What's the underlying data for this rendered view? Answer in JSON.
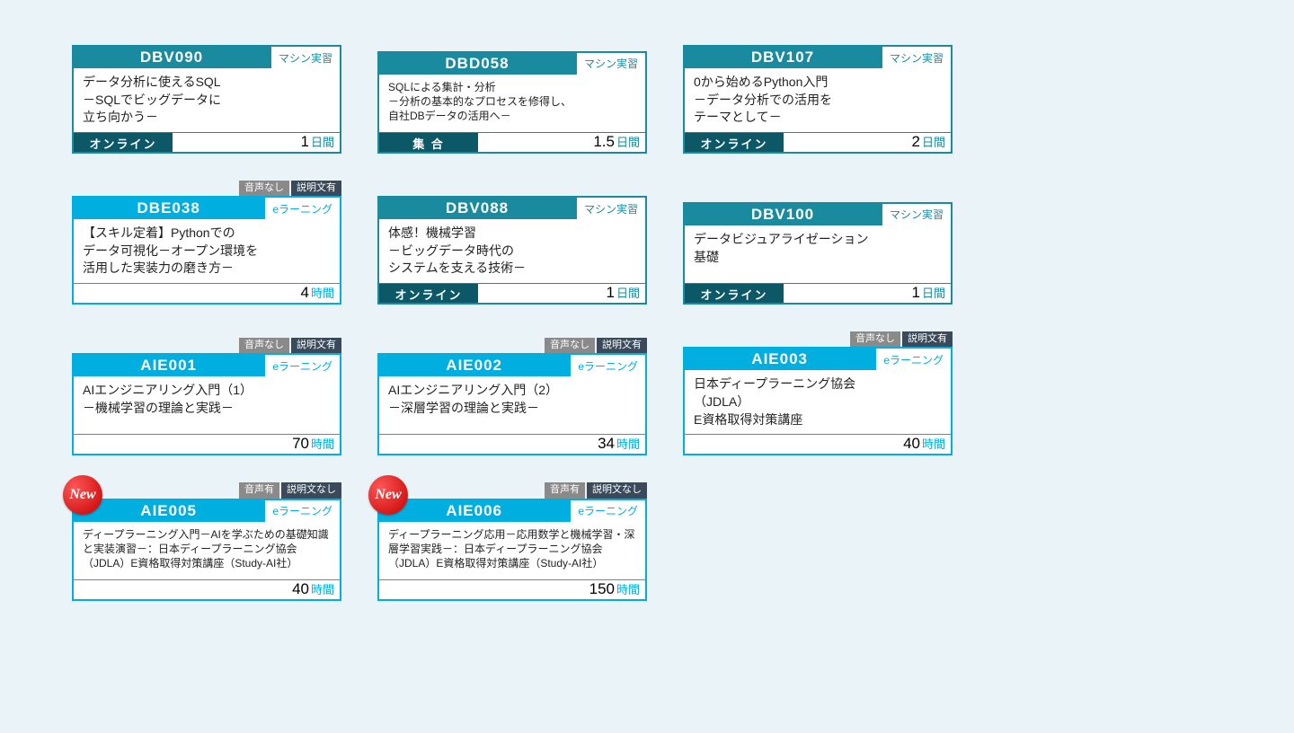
{
  "colors": {
    "teal": "#1a8a9e",
    "dark_teal": "#0d5866",
    "cyan": "#00aee0",
    "text": "#222222",
    "new_label": "New"
  },
  "type_labels": {
    "machine": "マシン実習",
    "elearning": "eラーニング"
  },
  "duration_units": {
    "days": "日間",
    "hours": "時間"
  },
  "tag_labels": {
    "no_audio": "音声なし",
    "has_audio": "音声有",
    "has_text": "説明文有",
    "no_text": "説明文なし"
  },
  "delivery_labels": {
    "online": "オンライン",
    "inperson": "集 合"
  },
  "cards": [
    {
      "code": "DBV090",
      "type": "machine",
      "color": "teal",
      "title": "データ分析に使えるSQL\n－SQLでビッグデータに\n立ち向かう－",
      "delivery": "online",
      "duration": "1",
      "unit": "days"
    },
    {
      "code": "DBD058",
      "type": "machine",
      "color": "teal",
      "title": "SQLによる集計・分析\n－分析の基本的なプロセスを修得し、\n自社DBデータの活用へ－",
      "delivery": "inperson",
      "duration": "1.5",
      "unit": "days",
      "small": true
    },
    {
      "code": "DBV107",
      "type": "machine",
      "color": "teal",
      "title": "0から始めるPython入門\n－データ分析での活用を\nテーマとして－",
      "delivery": "online",
      "duration": "2",
      "unit": "days"
    },
    {
      "code": "DBE038",
      "type": "elearning",
      "color": "cyan",
      "tags": [
        "no_audio",
        "has_text"
      ],
      "title": "【スキル定着】Pythonでの\nデータ可視化－オープン環境を\n活用した実装力の磨き方－",
      "duration": "4",
      "unit": "hours"
    },
    {
      "code": "DBV088",
      "type": "machine",
      "color": "teal",
      "title": "体感！機械学習\n－ビッグデータ時代の\nシステムを支える技術－",
      "delivery": "online",
      "duration": "1",
      "unit": "days"
    },
    {
      "code": "DBV100",
      "type": "machine",
      "color": "teal",
      "title": "データビジュアライゼーション\n基礎",
      "delivery": "online",
      "duration": "1",
      "unit": "days"
    },
    {
      "code": "AIE001",
      "type": "elearning",
      "color": "cyan",
      "tags": [
        "no_audio",
        "has_text"
      ],
      "title": "AIエンジニアリング入門（1）\n－機械学習の理論と実践－",
      "duration": "70",
      "unit": "hours"
    },
    {
      "code": "AIE002",
      "type": "elearning",
      "color": "cyan",
      "tags": [
        "no_audio",
        "has_text"
      ],
      "title": "AIエンジニアリング入門（2）\n－深層学習の理論と実践－",
      "duration": "34",
      "unit": "hours"
    },
    {
      "code": "AIE003",
      "type": "elearning",
      "color": "cyan",
      "tags": [
        "no_audio",
        "has_text"
      ],
      "title": "日本ディープラーニング協会\n（JDLA）\nE資格取得対策講座",
      "duration": "40",
      "unit": "hours"
    },
    {
      "code": "AIE005",
      "type": "elearning",
      "color": "cyan",
      "tags": [
        "has_audio",
        "no_text"
      ],
      "new": true,
      "title": "ディープラーニング入門－AIを学ぶための基礎知識と実装演習－：日本ディープラーニング協会（JDLA）E資格取得対策講座（Study-AI社）",
      "duration": "40",
      "unit": "hours",
      "small": true
    },
    {
      "code": "AIE006",
      "type": "elearning",
      "color": "cyan",
      "tags": [
        "has_audio",
        "no_text"
      ],
      "new": true,
      "title": "ディープラーニング応用－応用数学と機械学習・深層学習実践－：日本ディープラーニング協会（JDLA）E資格取得対策講座（Study-AI社）",
      "duration": "150",
      "unit": "hours",
      "small": true
    },
    null
  ]
}
